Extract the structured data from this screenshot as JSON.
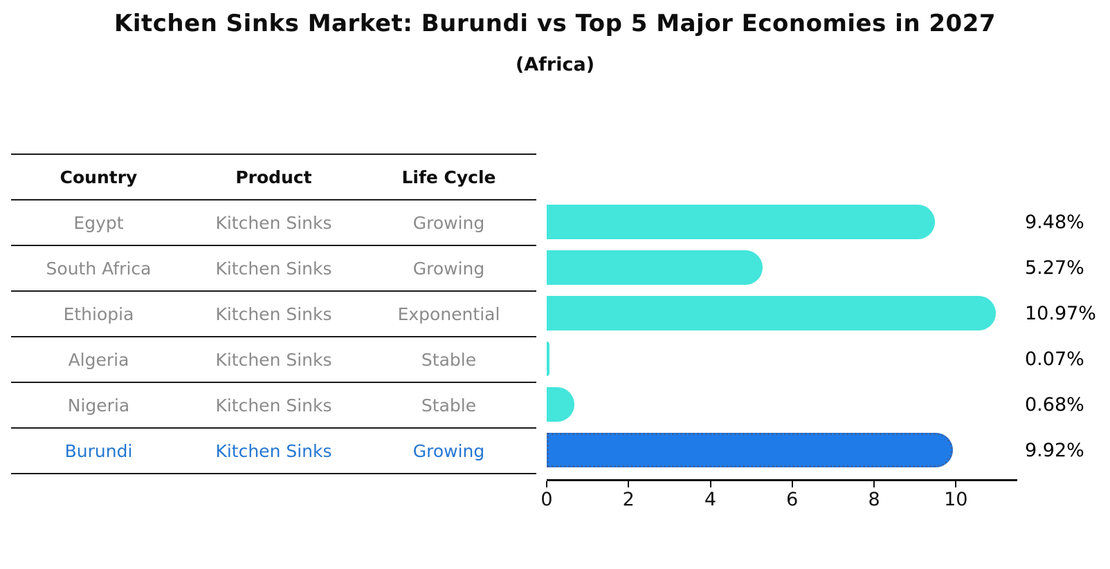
{
  "title": "Kitchen Sinks Market: Burundi vs Top 5 Major Economies in 2027",
  "subtitle": "(Africa)",
  "table": {
    "headers": [
      "Country",
      "Product",
      "Life Cycle"
    ],
    "rows": [
      {
        "country": "Egypt",
        "product": "Kitchen Sinks",
        "life_cycle": "Growing"
      },
      {
        "country": "South Africa",
        "product": "Kitchen Sinks",
        "life_cycle": "Growing"
      },
      {
        "country": "Ethiopia",
        "product": "Kitchen Sinks",
        "life_cycle": "Exponential"
      },
      {
        "country": "Algeria",
        "product": "Kitchen Sinks",
        "life_cycle": "Stable"
      },
      {
        "country": "Nigeria",
        "product": "Kitchen Sinks",
        "life_cycle": "Stable"
      },
      {
        "country": "Burundi",
        "product": "Kitchen Sinks",
        "life_cycle": "Growing"
      }
    ],
    "highlight_row": "Burundi"
  },
  "chart_data": {
    "type": "bar",
    "orientation": "horizontal",
    "title": "Kitchen Sinks Market: Burundi vs Top 5 Major Economies in 2027",
    "subtitle": "(Africa)",
    "categories": [
      "Egypt",
      "South Africa",
      "Ethiopia",
      "Algeria",
      "Nigeria",
      "Burundi"
    ],
    "values": [
      9.48,
      5.27,
      10.97,
      0.07,
      0.68,
      9.92
    ],
    "value_labels": [
      "9.48%",
      "5.27%",
      "10.97%",
      "0.07%",
      "0.68%",
      "9.92%"
    ],
    "xticks": [
      "0",
      "2",
      "4",
      "6",
      "8",
      "10"
    ],
    "xtick_values": [
      0,
      2,
      4,
      6,
      8,
      10
    ],
    "xlim": [
      0,
      11.5
    ],
    "grid": false,
    "legend": false,
    "bar_color": "#44E5DB",
    "highlight_color": "#1E7BE8",
    "highlight_index": 5,
    "highlight_style": "dotted-border"
  }
}
